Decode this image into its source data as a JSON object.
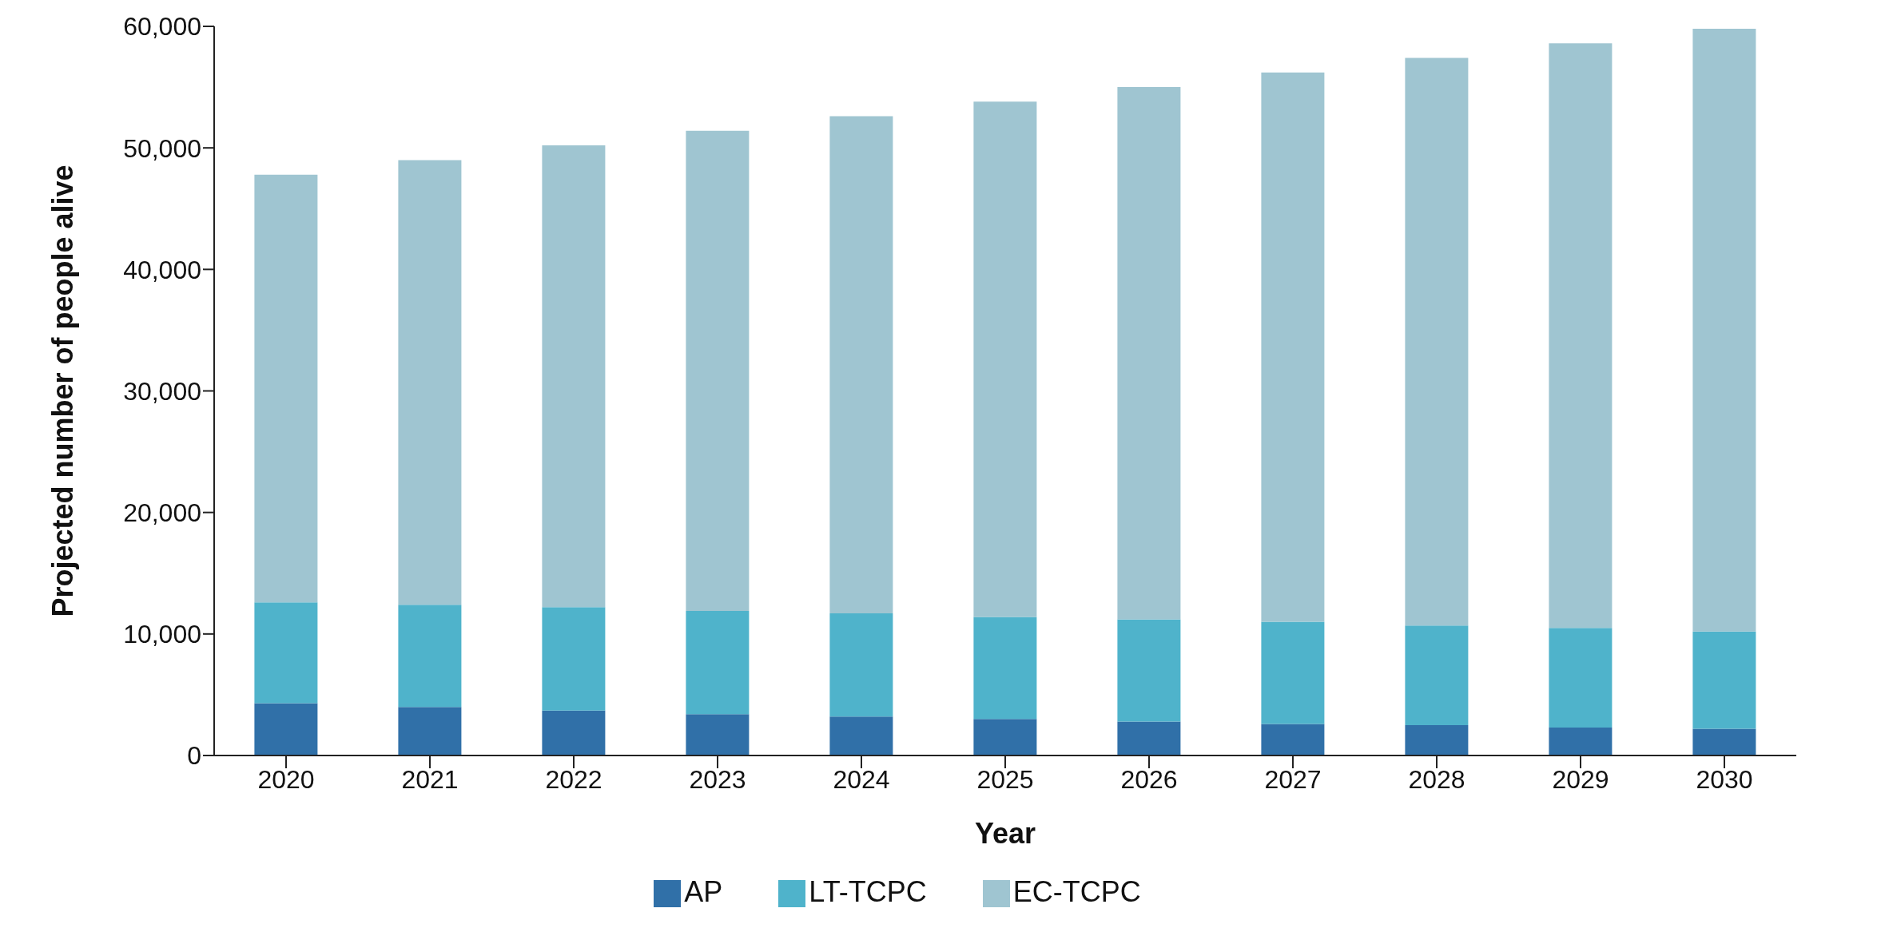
{
  "chart_data": {
    "type": "bar",
    "stacked": true,
    "xlabel": "Year",
    "ylabel": "Projected number of people alive",
    "categories": [
      "2020",
      "2021",
      "2022",
      "2023",
      "2024",
      "2025",
      "2026",
      "2027",
      "2028",
      "2029",
      "2030"
    ],
    "series": [
      {
        "name": "AP",
        "color": "#3070a8",
        "values": [
          4300,
          4000,
          3700,
          3400,
          3200,
          3000,
          2800,
          2600,
          2500,
          2300,
          2200
        ]
      },
      {
        "name": "LT-TCPC",
        "color": "#4fb3cb",
        "values": [
          8300,
          8400,
          8500,
          8500,
          8500,
          8400,
          8400,
          8400,
          8200,
          8200,
          8000
        ]
      },
      {
        "name": "EC-TCPC",
        "color": "#9fc5d1",
        "values": [
          35200,
          36600,
          38000,
          39500,
          40900,
          42400,
          43800,
          45200,
          46700,
          48100,
          49600
        ]
      }
    ],
    "ylim": [
      0,
      60000
    ],
    "yticks": [
      0,
      {
        "value": 10000,
        "label": "10,000"
      },
      {
        "value": 20000,
        "label": "20,000"
      },
      {
        "value": 30000,
        "label": "30,000"
      },
      {
        "value": 40000,
        "label": "40,000"
      },
      {
        "value": 50000,
        "label": "50,000"
      },
      {
        "value": 60000,
        "label": "60,000"
      }
    ],
    "grid": false,
    "legend": "bottom"
  }
}
